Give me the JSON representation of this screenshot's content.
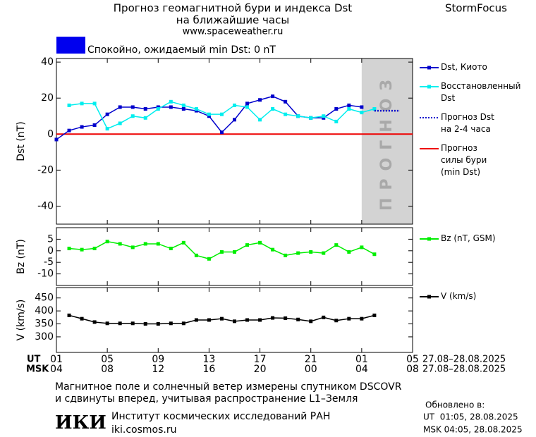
{
  "header": {
    "title_line1": "Прогноз геомагнитной бури и индекса Dst",
    "title_line2": "на ближайшие часы",
    "url": "www.spaceweather.ru",
    "brand": "StormFocus"
  },
  "status": {
    "color": "#0000ee",
    "text": "Спокойно, ожидаемый min Dst: 0 nT"
  },
  "chart_data": [
    {
      "type": "line",
      "ylabel": "Dst (nT)",
      "xlim": [
        0,
        28
      ],
      "ylim": [
        -50,
        42
      ],
      "yticks": [
        -40,
        -20,
        0,
        20,
        40
      ],
      "forecast_region": {
        "label": "ПРОГНОЗ",
        "x": [
          24,
          28
        ],
        "color": "#d3d3d3"
      },
      "series": [
        {
          "name": "Dst, Киото",
          "color": "#0000cc",
          "marker": "square",
          "x": [
            0,
            1,
            2,
            3,
            4,
            5,
            6,
            7,
            8,
            9,
            10,
            11,
            12,
            13,
            14,
            15,
            16,
            17,
            18,
            19,
            20,
            21,
            22,
            23,
            24
          ],
          "values": [
            -3,
            2,
            4,
            5,
            11,
            15,
            15,
            14,
            15,
            15,
            14,
            13,
            10,
            1,
            8,
            17,
            19,
            21,
            18,
            10,
            9,
            9,
            14,
            16,
            15
          ]
        },
        {
          "name": "Восстановленный\nDst",
          "color": "#00eeee",
          "marker": "square",
          "x": [
            1,
            2,
            3,
            4,
            5,
            6,
            7,
            8,
            9,
            10,
            11,
            12,
            13,
            14,
            15,
            16,
            17,
            18,
            19,
            20,
            21,
            22,
            23,
            24,
            25
          ],
          "values": [
            16,
            17,
            17,
            3,
            6,
            10,
            9,
            14,
            18,
            16,
            14,
            11,
            11,
            16,
            15,
            8,
            14,
            11,
            10,
            9,
            10,
            7,
            14,
            12,
            14
          ]
        },
        {
          "name": "Прогноз Dst\nна 2-4 часа",
          "color": "#0000cc",
          "line_style": "dotted",
          "x": [
            25,
            27
          ],
          "values": [
            13,
            13
          ]
        }
      ],
      "threshold": {
        "name": "Прогноз\nсилы бури\n(min Dst)",
        "color": "#ee0000",
        "value": 0
      }
    },
    {
      "type": "line",
      "ylabel": "Bz (nT)",
      "xlim": [
        0,
        28
      ],
      "ylim": [
        -15,
        10
      ],
      "yticks": [
        -10,
        -5,
        0,
        5
      ],
      "series": [
        {
          "name": "Bz (nT, GSM)",
          "color": "#00ee00",
          "marker": "square",
          "x": [
            1,
            2,
            3,
            4,
            5,
            6,
            7,
            8,
            9,
            10,
            11,
            12,
            13,
            14,
            15,
            16,
            17,
            18,
            19,
            20,
            21,
            22,
            23,
            24,
            25
          ],
          "values": [
            1,
            0.5,
            1,
            4,
            3,
            1.5,
            3,
            3,
            1,
            3.5,
            -2,
            -3.5,
            -0.5,
            -0.5,
            2.5,
            3.5,
            0.5,
            -2,
            -1,
            -0.5,
            -1,
            2.5,
            -0.5,
            1.5,
            -1.5
          ]
        }
      ]
    },
    {
      "type": "line",
      "ylabel": "V (km/s)",
      "xlim": [
        0,
        28
      ],
      "ylim": [
        240,
        490
      ],
      "yticks": [
        300,
        350,
        400,
        450
      ],
      "series": [
        {
          "name": "V (km/s)",
          "color": "#000000",
          "marker": "square",
          "x": [
            1,
            2,
            3,
            4,
            5,
            6,
            7,
            8,
            9,
            10,
            11,
            12,
            13,
            14,
            15,
            16,
            17,
            18,
            19,
            20,
            21,
            22,
            23,
            24,
            25
          ],
          "values": [
            383,
            370,
            357,
            352,
            352,
            352,
            350,
            350,
            352,
            352,
            365,
            365,
            370,
            360,
            365,
            365,
            373,
            372,
            367,
            360,
            375,
            363,
            370,
            370,
            383
          ]
        }
      ],
      "xticks": [
        {
          "value": 0,
          "label": "01"
        },
        {
          "value": 4,
          "label": "05"
        },
        {
          "value": 8,
          "label": "09"
        },
        {
          "value": 12,
          "label": "13"
        },
        {
          "value": 16,
          "label": "17"
        },
        {
          "value": 20,
          "label": "21"
        },
        {
          "value": 24,
          "label": "01"
        },
        {
          "value": 28,
          "label": "05"
        }
      ],
      "xticks_msk": [
        {
          "value": 0,
          "label": "04"
        },
        {
          "value": 4,
          "label": "08"
        },
        {
          "value": 8,
          "label": "12"
        },
        {
          "value": 12,
          "label": "16"
        },
        {
          "value": 16,
          "label": "20"
        },
        {
          "value": 20,
          "label": "00"
        },
        {
          "value": 24,
          "label": "04"
        },
        {
          "value": 28,
          "label": "08"
        }
      ],
      "xlabel_ut": "UT",
      "xlabel_msk": "MSK",
      "date_range_ut": "27.08–28.08.2025",
      "date_range_msk": "27.08–28.08.2025"
    }
  ],
  "footer": {
    "note_line1": "Магнитное поле и солнечный ветер измерены спутником DSCOVR",
    "note_line2": "и сдвинуты вперед, учитывая распространение L1–Земля",
    "logo": "ИКИ",
    "institute": "Институт космических исследований РАН",
    "site": "iki.cosmos.ru",
    "updated_label": "Обновлено в:",
    "updated_ut": "UT  01:05, 28.08.2025",
    "updated_msk": "MSK 04:05, 28.08.2025"
  }
}
